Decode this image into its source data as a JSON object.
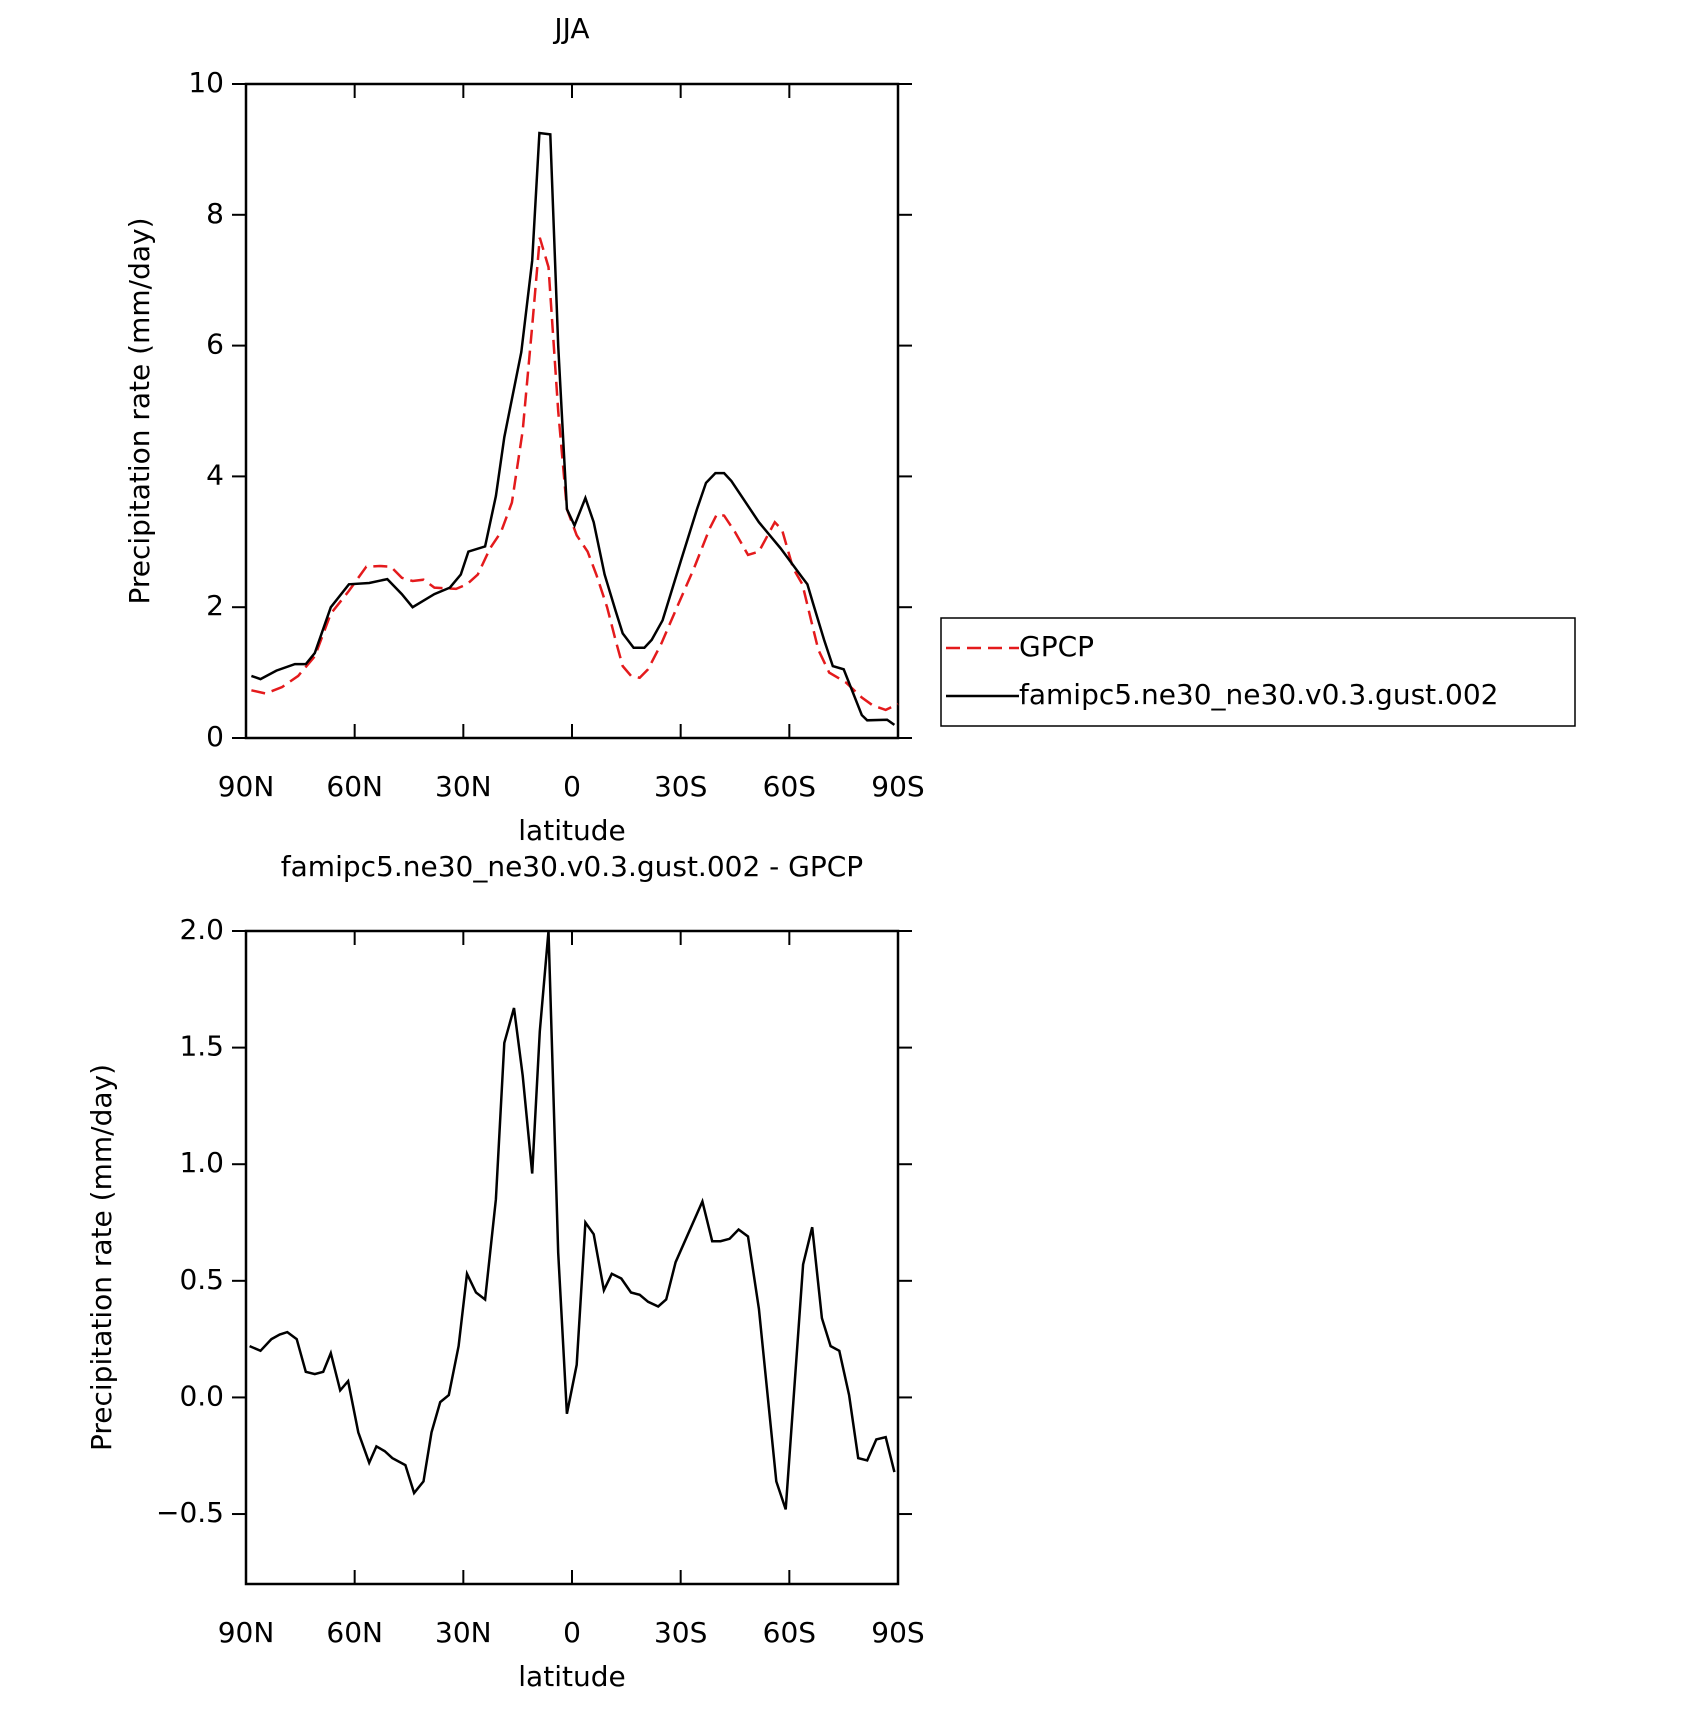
{
  "chart_data": [
    {
      "type": "line",
      "title": "JJA",
      "xlabel": "latitude",
      "ylabel": "Precipitation rate (mm/day)",
      "xlim": [
        90,
        -90
      ],
      "ylim": [
        0,
        10
      ],
      "xticks": [
        {
          "value": 90,
          "label": "90N"
        },
        {
          "value": 60,
          "label": "60N"
        },
        {
          "value": 30,
          "label": "30N"
        },
        0,
        {
          "value": -30,
          "label": "30S"
        },
        {
          "value": -60,
          "label": "60S"
        },
        {
          "value": -90,
          "label": "90S"
        }
      ],
      "yticks": [
        0,
        2,
        4,
        6,
        8,
        10
      ],
      "legend": "right",
      "series": [
        {
          "name": "GPCP",
          "color": "#e41a1c",
          "dash": true,
          "x": [
            88.5,
            84.6,
            80,
            75.6,
            71,
            66.6,
            61.6,
            56.8,
            53,
            50,
            47,
            44,
            41,
            38,
            32,
            29,
            26,
            22.6,
            19.6,
            16.6,
            13.6,
            11,
            8.9,
            6.5,
            3.8,
            1.4,
            -1.3,
            -4.3,
            -6.7,
            -9.7,
            -12,
            -14,
            -16.3,
            -18.7,
            -21,
            -24.7,
            -29,
            -33.7,
            -38,
            -40,
            -42,
            -45,
            -48.6,
            -51.6,
            -56,
            -58,
            -61,
            -63.6,
            -66,
            -68,
            -71,
            -75.6,
            -80,
            -83,
            -86.6,
            -90
          ],
          "values": [
            0.73,
            0.68,
            0.78,
            0.95,
            1.25,
            1.9,
            2.25,
            2.62,
            2.63,
            2.62,
            2.45,
            2.4,
            2.42,
            2.3,
            2.28,
            2.35,
            2.5,
            2.9,
            3.15,
            3.6,
            4.7,
            6.3,
            7.65,
            7.2,
            5.0,
            3.5,
            3.1,
            2.85,
            2.5,
            2.0,
            1.5,
            1.1,
            0.95,
            0.92,
            1.05,
            1.45,
            2.0,
            2.6,
            3.2,
            3.42,
            3.4,
            3.15,
            2.8,
            2.85,
            3.3,
            3.18,
            2.6,
            2.35,
            1.8,
            1.35,
            1.0,
            0.85,
            0.62,
            0.5,
            0.43,
            0.52
          ]
        },
        {
          "name": "famipc5.ne30_ne30.v0.3.gust.002",
          "color": "#000000",
          "dash": false,
          "x": [
            88.5,
            86,
            81.6,
            76.5,
            73.5,
            71,
            66.6,
            61.6,
            56,
            51,
            47,
            44,
            38,
            33.7,
            30.7,
            28.6,
            24,
            21,
            18.7,
            14,
            11,
            9,
            6,
            3.8,
            1.4,
            -0.7,
            -3.7,
            -6,
            -9,
            -12,
            -14,
            -17,
            -20,
            -22,
            -25,
            -30,
            -34.5,
            -37,
            -39.6,
            -42,
            -44,
            -51.6,
            -57.6,
            -63.6,
            -65,
            -66.6,
            -69.6,
            -72,
            -75,
            -80,
            -81.5,
            -87,
            -89
          ],
          "values": [
            0.95,
            0.9,
            1.03,
            1.13,
            1.13,
            1.3,
            2.0,
            2.35,
            2.37,
            2.43,
            2.2,
            2.0,
            2.2,
            2.3,
            2.5,
            2.85,
            2.93,
            3.7,
            4.6,
            5.9,
            7.3,
            9.25,
            9.23,
            6.0,
            3.5,
            3.25,
            3.67,
            3.3,
            2.5,
            1.95,
            1.6,
            1.38,
            1.38,
            1.5,
            1.8,
            2.7,
            3.5,
            3.9,
            4.05,
            4.05,
            3.93,
            3.3,
            2.9,
            2.45,
            2.35,
            2.05,
            1.5,
            1.1,
            1.05,
            0.35,
            0.27,
            0.28,
            0.2
          ]
        }
      ]
    },
    {
      "type": "line",
      "title": "famipc5.ne30_ne30.v0.3.gust.002 - GPCP",
      "xlabel": "latitude",
      "ylabel": "Precipitation rate (mm/day)",
      "xlim": [
        90,
        -90
      ],
      "ylim": [
        -0.8,
        2.0
      ],
      "xticks": [
        {
          "value": 90,
          "label": "90N"
        },
        {
          "value": 60,
          "label": "60N"
        },
        {
          "value": 30,
          "label": "30N"
        },
        0,
        {
          "value": -30,
          "label": "30S"
        },
        {
          "value": -60,
          "label": "60S"
        },
        {
          "value": -90,
          "label": "90S"
        }
      ],
      "yticks": [
        {
          "value": -0.5,
          "label": "−0.5"
        },
        {
          "value": 0,
          "label": "0.0"
        },
        {
          "value": 0.5,
          "label": "0.5"
        },
        {
          "value": 1,
          "label": "1.0"
        },
        {
          "value": 1.5,
          "label": "1.5"
        },
        {
          "value": 2,
          "label": "2.0"
        }
      ],
      "series": [
        {
          "color": "#000000",
          "dash": false,
          "x": [
            89,
            86,
            83,
            80.7,
            78.6,
            76,
            73.5,
            71,
            68.7,
            66.6,
            64,
            61.8,
            59,
            56,
            54,
            51.7,
            49.6,
            46,
            43.6,
            41,
            38.8,
            36.4,
            34,
            31.3,
            29,
            26.5,
            24,
            21,
            18.7,
            16,
            13.6,
            11,
            8.9,
            6.5,
            3.8,
            1.4,
            -1.3,
            -3.7,
            -6,
            -8.8,
            -11,
            -13.6,
            -16.3,
            -18.7,
            -21,
            -23.8,
            -26,
            -28.6,
            -36,
            -38.7,
            -41,
            -43.5,
            -46,
            -48.6,
            -51.6,
            -56.4,
            -59,
            -63.8,
            -66.3,
            -69,
            -71.4,
            -73.8,
            -76.5,
            -79,
            -81.5,
            -84,
            -86.6,
            -89
          ],
          "values": [
            0.22,
            0.2,
            0.25,
            0.27,
            0.28,
            0.25,
            0.11,
            0.1,
            0.11,
            0.19,
            0.03,
            0.07,
            -0.15,
            -0.28,
            -0.21,
            -0.23,
            -0.26,
            -0.29,
            -0.41,
            -0.36,
            -0.15,
            -0.02,
            0.01,
            0.22,
            0.53,
            0.45,
            0.42,
            0.85,
            1.52,
            1.67,
            1.38,
            0.96,
            1.57,
            2.0,
            0.62,
            -0.07,
            0.14,
            0.75,
            0.7,
            0.46,
            0.53,
            0.51,
            0.45,
            0.44,
            0.41,
            0.39,
            0.42,
            0.58,
            0.84,
            0.67,
            0.67,
            0.68,
            0.72,
            0.69,
            0.38,
            -0.36,
            -0.48,
            0.57,
            0.73,
            0.34,
            0.22,
            0.2,
            0.01,
            -0.26,
            -0.27,
            -0.18,
            -0.17,
            -0.32
          ]
        }
      ]
    }
  ]
}
